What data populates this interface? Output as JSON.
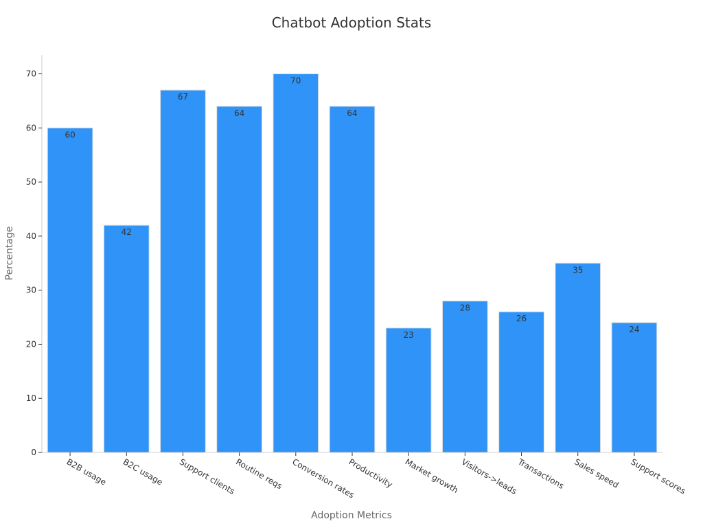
{
  "chart_data": {
    "type": "bar",
    "title": "Chatbot Adoption Stats",
    "xlabel": "Adoption Metrics",
    "ylabel": "Percentage",
    "categories": [
      "B2B usage",
      "B2C usage",
      "Support clients",
      "Routine reqs",
      "Conversion rates",
      "Productivity",
      "Market growth",
      "Visitors->leads",
      "Transactions",
      "Sales speed",
      "Support scores"
    ],
    "values": [
      60,
      42,
      67,
      64,
      70,
      64,
      23,
      28,
      26,
      35,
      24
    ],
    "ylim": [
      0,
      73.5
    ],
    "yticks": [
      0,
      10,
      20,
      30,
      40,
      50,
      60,
      70
    ],
    "grid": false,
    "data_labels": true,
    "bar_color": "#2f93f7",
    "bar_edge_color": "#dddddd",
    "text_color": "#333333",
    "axis_label_color": "#666666",
    "axis_color": "#cccccc"
  }
}
